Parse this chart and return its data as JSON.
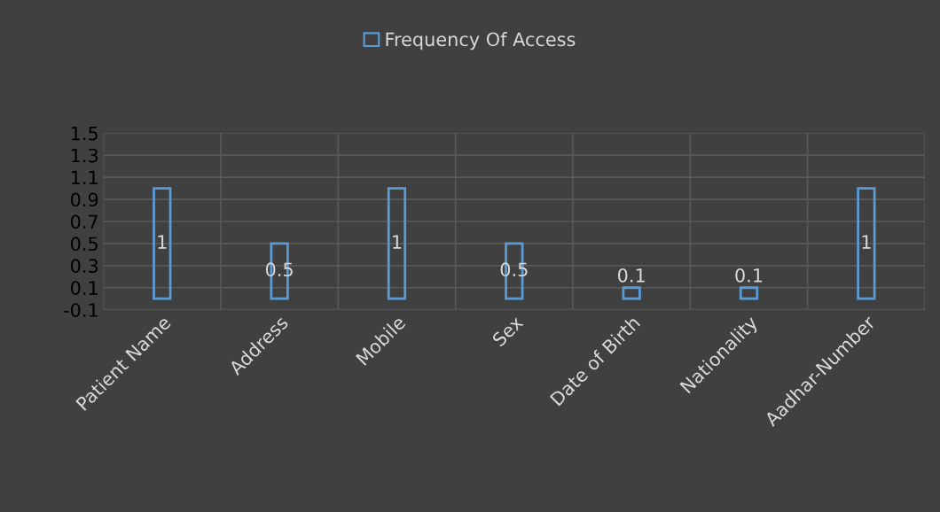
{
  "chart_data": {
    "type": "bar",
    "categories": [
      "Patient Name",
      "Address",
      "Mobile",
      "Sex",
      "Date of Birth",
      "Nationality",
      "Aadhar-Number"
    ],
    "series": [
      {
        "name": "Frequency Of Access",
        "color": "#5b9bd5",
        "values": [
          1,
          0.5,
          1,
          0.5,
          0.1,
          0.1,
          1
        ]
      }
    ],
    "ylim": [
      -0.1,
      1.5
    ],
    "yticks": [
      -0.1,
      0.1,
      0.3,
      0.5,
      0.7,
      0.9,
      1.1,
      1.3,
      1.5
    ],
    "grid": true,
    "legend": "top",
    "data_labels": true
  }
}
